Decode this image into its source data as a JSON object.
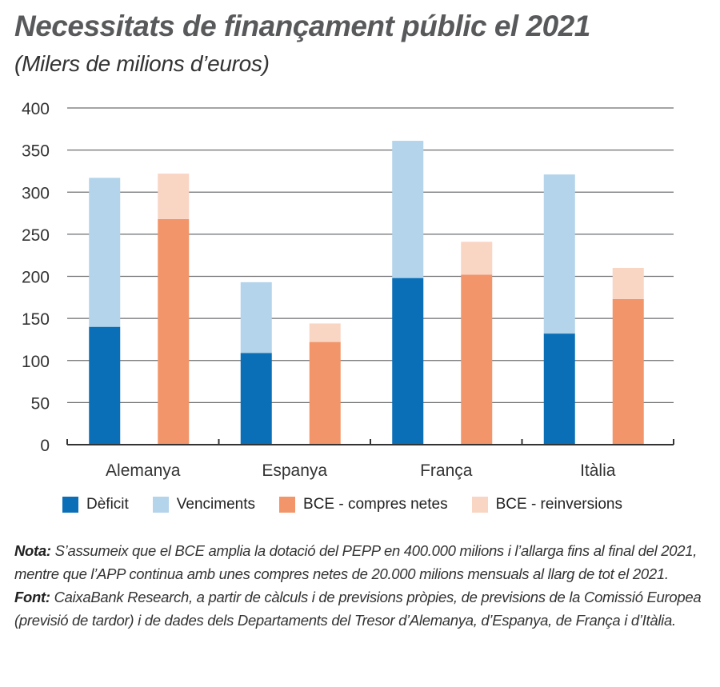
{
  "header": {
    "title": "Necessitats de finançament públic el 2021",
    "subtitle": "(Milers de milions d’euros)"
  },
  "chart_data": {
    "type": "bar",
    "stacked": true,
    "title": "Necessitats de finançament públic el 2021",
    "subtitle": "(Milers de milions d’euros)",
    "xlabel": "",
    "ylabel": "",
    "ylim": [
      0,
      400
    ],
    "yticks": [
      0,
      50,
      100,
      150,
      200,
      250,
      300,
      350,
      400
    ],
    "grid": true,
    "legend_position": "bottom",
    "categories": [
      "Alemanya",
      "Espanya",
      "França",
      "Itàlia"
    ],
    "stacks": [
      {
        "name": "Necessitats",
        "series": [
          {
            "name": "Dèficit",
            "color": "#0a6fb7",
            "values": [
              140,
              109,
              198,
              132
            ]
          },
          {
            "name": "Venciments",
            "color": "#b3d4ea",
            "values": [
              177,
              84,
              163,
              189
            ]
          }
        ]
      },
      {
        "name": "BCE",
        "series": [
          {
            "name": "BCE - compres netes",
            "color": "#f2956a",
            "values": [
              268,
              122,
              202,
              173
            ]
          },
          {
            "name": "BCE - reinversions",
            "color": "#f9d5c4",
            "values": [
              54,
              22,
              39,
              37
            ]
          }
        ]
      }
    ]
  },
  "legend": [
    {
      "label": "Dèficit",
      "color": "#0a6fb7"
    },
    {
      "label": "Venciments",
      "color": "#b3d4ea"
    },
    {
      "label": "BCE - compres netes",
      "color": "#f2956a"
    },
    {
      "label": "BCE - reinversions",
      "color": "#f9d5c4"
    }
  ],
  "notes": {
    "nota_label": "Nota:",
    "nota_text": " S’assumeix que el BCE amplia la dotació del PEPP en 400.000 milions i l’allarga fins al final del 2021, mentre que l’APP continua amb unes compres netes de 20.000 milions mensuals al llarg de tot el 2021.",
    "font_label": "Font:",
    "font_text": " CaixaBank Research, a partir de càlculs i de previsions pròpies, de previsions de la Comissió Europea (previsió de tardor) i de dades dels Departaments del Tresor d’Alemanya, d’Espanya, de França i d’Itàlia."
  }
}
